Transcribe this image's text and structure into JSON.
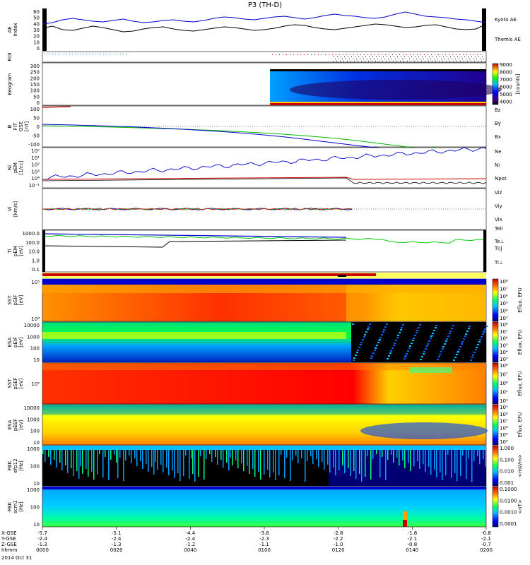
{
  "title": "P3 (TH-D)",
  "date": "2014 Oct 31",
  "chart_data": {
    "type": "multi-panel",
    "x_ticks": [
      "0000",
      "0020",
      "0040",
      "0100",
      "0120",
      "0140",
      "0200"
    ],
    "coord_rows": [
      {
        "label": "X-GSE",
        "values": [
          "-5.7",
          "-5.1",
          "-4.4",
          "-3.6",
          "-2.8",
          "-1.8",
          "-0.8"
        ]
      },
      {
        "label": "Y-GSE",
        "values": [
          "-2.4",
          "-2.4",
          "-2.4",
          "-2.3",
          "-2.2",
          "-2.1",
          "-2.1"
        ]
      },
      {
        "label": "Z-GSE",
        "values": [
          "-1.3",
          "-1.3",
          "-1.2",
          "-1.1",
          "-1.0",
          "-0.8",
          "-0.7"
        ]
      },
      {
        "label": "hhmm",
        "values": [
          "0000",
          "0020",
          "0040",
          "0100",
          "0120",
          "0140",
          "0200"
        ]
      }
    ],
    "panels": [
      {
        "id": "ae",
        "ylabel": "AE Index",
        "yticks": [
          "60",
          "50",
          "40",
          "30",
          "20",
          "10",
          "0"
        ],
        "series": [
          {
            "name": "Kyoto AE",
            "color": "#0000cc",
            "values": [
              38,
              40,
              44,
              46,
              44,
              42,
              41,
              43,
              45,
              42,
              40,
              41,
              43,
              44,
              42,
              41,
              43,
              46,
              48,
              47,
              45,
              44,
              46,
              48,
              49,
              47,
              45,
              47,
              50,
              52,
              50,
              49,
              47,
              46,
              48,
              52,
              55,
              52,
              49,
              48,
              47,
              45,
              44,
              42,
              40
            ]
          },
          {
            "name": "Themis AE",
            "color": "#000000",
            "values": [
              32,
              35,
              30,
              29,
              32,
              35,
              33,
              30,
              27,
              28,
              31,
              33,
              34,
              31,
              29,
              28,
              30,
              32,
              34,
              33,
              31,
              29,
              30,
              32,
              35,
              37,
              36,
              33,
              31,
              30,
              32,
              34,
              36,
              38,
              37,
              35,
              33,
              34,
              36,
              37,
              34,
              31,
              30,
              31,
              38
            ]
          }
        ]
      },
      {
        "id": "roi",
        "ylabel": "ROI"
      },
      {
        "id": "keogram",
        "ylabel": "Keogram",
        "yticks": [
          "300",
          "250",
          "200",
          "150",
          "100",
          "50",
          "0"
        ],
        "colorbar": {
          "label": "[counts]",
          "ticks": [
            "9000",
            "8000",
            "7000",
            "6000",
            "5000",
            "4000"
          ]
        }
      },
      {
        "id": "bfit",
        "ylabel": "B FIT GSE [nT]",
        "yticks": [
          "100",
          "50",
          "0",
          "-50",
          "-100"
        ],
        "legend": [
          {
            "name": "Bz",
            "color": "#cc0000"
          },
          {
            "name": "By",
            "color": "#00bb00"
          },
          {
            "name": "Bx",
            "color": "#0000cc"
          }
        ]
      },
      {
        "id": "ni",
        "ylabel": "Ni pEM [1/cc]",
        "yticks": [
          "10⁰",
          "10¹",
          "10²",
          "10³",
          "10⁴",
          "10⁻¹"
        ],
        "legend": [
          {
            "name": "Ne",
            "color": "#cc0000"
          },
          {
            "name": "Ni",
            "color": "#000000"
          },
          {
            "name": "Npot",
            "color": "#0000cc"
          }
        ]
      },
      {
        "id": "vi",
        "ylabel": "Vi [km/s]",
        "legend": [
          {
            "name": "Viz",
            "color": "#cc0000"
          },
          {
            "name": "Viy",
            "color": "#00bb00"
          },
          {
            "name": "Vix",
            "color": "#0000cc"
          }
        ]
      },
      {
        "id": "ti",
        "ylabel": "Ti pEM [eV]",
        "yticks": [
          "1000.0",
          "100.0",
          "10.0",
          "1.0",
          "0.1"
        ],
        "legend": [
          {
            "name": "Tell",
            "color": "#000000"
          },
          {
            "name": "Te⊥",
            "color": "#cc0000"
          },
          {
            "name": "Ti||",
            "color": "#bbbb00"
          },
          {
            "name": "Ti⊥",
            "color": "#0000cc"
          }
        ]
      },
      {
        "id": "sst_i",
        "ylabel": "SST pSIF [eV]",
        "yticks": [
          "10⁵",
          "10⁴"
        ],
        "colorbar": {
          "label": "Eflux, EFU",
          "ticks": [
            "10⁸",
            "10⁷",
            "10⁶",
            "10⁵",
            "10⁴",
            "10³"
          ]
        }
      },
      {
        "id": "esa_i",
        "ylabel": "ESA pEIF [eV]",
        "yticks": [
          "10000",
          "1000",
          "100",
          "10"
        ],
        "colorbar": {
          "label": "Eflux, EFU",
          "ticks": [
            "10⁸",
            "10⁷",
            "10⁶",
            "10⁵",
            "10⁴",
            "10³"
          ]
        }
      },
      {
        "id": "sst_e",
        "ylabel": "SST pSEF [eV]",
        "yticks": [
          "10⁵"
        ],
        "colorbar": {
          "label": "Eflux, EFU",
          "ticks": [
            "10⁸",
            "10⁷",
            "10⁶",
            "10⁵",
            "10⁴"
          ]
        }
      },
      {
        "id": "esa_e",
        "ylabel": "ESA pEEF [eV]",
        "yticks": [
          "10000",
          "1000",
          "100",
          "10"
        ],
        "colorbar": {
          "label": "Eflux, EFU",
          "ticks": [
            "10⁹",
            "10⁸",
            "10⁷",
            "10⁶",
            "10⁵",
            "10⁴"
          ]
        }
      },
      {
        "id": "fbk_e",
        "ylabel": "FBK efp12 [Hz]",
        "yticks": [
          "1000",
          "100",
          "10"
        ],
        "colorbar": {
          "label": "<mV/m>",
          "ticks": [
            "1.000",
            "0.100",
            "0.010",
            "0.001"
          ]
        }
      },
      {
        "id": "fbk_b",
        "ylabel": "FBK scm1 [Hz]",
        "yticks": [
          "1000",
          "100",
          "10"
        ],
        "colorbar": {
          "label": "<nT>",
          "ticks": [
            "0.1000",
            "0.0100",
            "0.0010",
            "0.0001"
          ]
        }
      }
    ]
  }
}
